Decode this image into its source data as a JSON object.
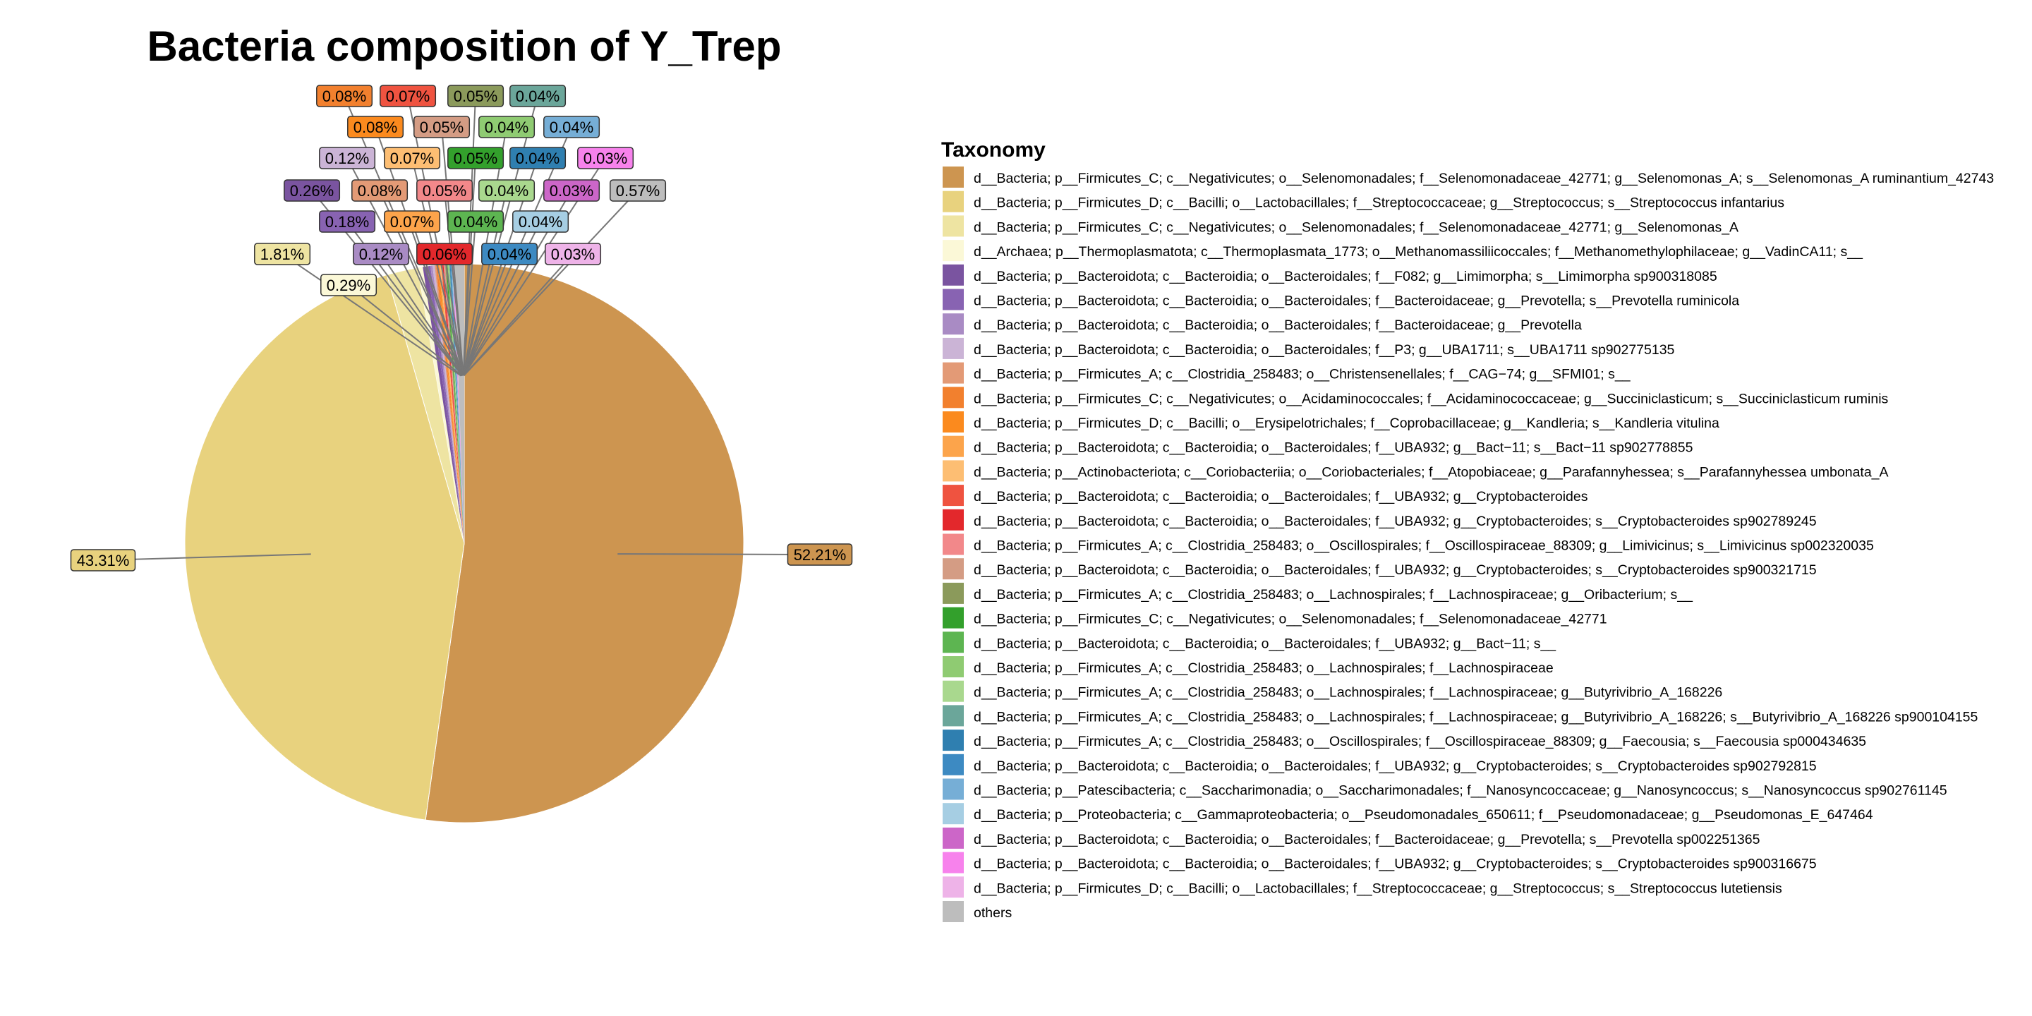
{
  "chart_data": {
    "type": "pie",
    "title": "Bacteria composition of Y_Trep",
    "legend_title": "Taxonomy",
    "legend_position": "right",
    "slices": [
      {
        "label": "d__Bacteria; p__Firmicutes_C; c__Negativicutes; o__Selenomonadales; f__Selenomonadaceae_42771; g__Selenomonas_A; s__Selenomonas_A ruminantium_42743",
        "value": 52.21,
        "pct_text": "52.21%",
        "color": "#CD9550"
      },
      {
        "label": "d__Bacteria; p__Firmicutes_D; c__Bacilli; o__Lactobacillales; f__Streptococcaceae; g__Streptococcus; s__Streptococcus infantarius",
        "value": 43.31,
        "pct_text": "43.31%",
        "color": "#E8D27E"
      },
      {
        "label": "d__Bacteria; p__Firmicutes_C; c__Negativicutes; o__Selenomonadales; f__Selenomonadaceae_42771; g__Selenomonas_A",
        "value": 1.81,
        "pct_text": "1.81%",
        "color": "#EEE4A2"
      },
      {
        "label": "d__Archaea; p__Thermoplasmatota; c__Thermoplasmata_1773; o__Methanomassiliicoccales; f__Methanomethylophilaceae; g__VadinCA11; s__",
        "value": 0.29,
        "pct_text": "0.29%",
        "color": "#FBF8D7"
      },
      {
        "label": "d__Bacteria; p__Bacteroidota; c__Bacteroidia; o__Bacteroidales; f__F082; g__Limimorpha; s__Limimorpha sp900318085",
        "value": 0.26,
        "pct_text": "0.26%",
        "color": "#7A54A0"
      },
      {
        "label": "d__Bacteria; p__Bacteroidota; c__Bacteroidia; o__Bacteroidales; f__Bacteroidaceae; g__Prevotella; s__Prevotella ruminicola",
        "value": 0.18,
        "pct_text": "0.18%",
        "color": "#8863B2"
      },
      {
        "label": "d__Bacteria; p__Bacteroidota; c__Bacteroidia; o__Bacteroidales; f__Bacteroidaceae; g__Prevotella",
        "value": 0.12,
        "pct_text": "0.12%",
        "color": "#A98BC4"
      },
      {
        "label": "d__Bacteria; p__Bacteroidota; c__Bacteroidia; o__Bacteroidales; f__P3; g__UBA1711; s__UBA1711 sp902775135",
        "value": 0.12,
        "pct_text": "0.12%",
        "color": "#CBB4D6"
      },
      {
        "label": "d__Bacteria; p__Firmicutes_A; c__Clostridia_258483; o__Christensenellales; f__CAG−74; g__SFMI01; s__",
        "value": 0.08,
        "pct_text": "0.08%",
        "color": "#E39A76"
      },
      {
        "label": "d__Bacteria; p__Firmicutes_C; c__Negativicutes; o__Acidaminococcales; f__Acidaminococcaceae; g__Succiniclasticum; s__Succiniclasticum ruminis",
        "value": 0.08,
        "pct_text": "0.08%",
        "color": "#F2802E"
      },
      {
        "label": "d__Bacteria; p__Firmicutes_D; c__Bacilli; o__Erysipelotrichales; f__Coprobacillaceae; g__Kandleria; s__Kandleria vitulina",
        "value": 0.08,
        "pct_text": "0.08%",
        "color": "#FB8A1E"
      },
      {
        "label": "d__Bacteria; p__Bacteroidota; c__Bacteroidia; o__Bacteroidales; f__UBA932; g__Bact−11; s__Bact−11 sp902778855",
        "value": 0.07,
        "pct_text": "0.07%",
        "color": "#FCA44B"
      },
      {
        "label": "d__Bacteria; p__Actinobacteriota; c__Coriobacteriia; o__Coriobacteriales; f__Atopobiaceae; g__Parafannyhessea; s__Parafannyhessea umbonata_A",
        "value": 0.07,
        "pct_text": "0.07%",
        "color": "#FDBE73"
      },
      {
        "label": "d__Bacteria; p__Bacteroidota; c__Bacteroidia; o__Bacteroidales; f__UBA932; g__Cryptobacteroides",
        "value": 0.07,
        "pct_text": "0.07%",
        "color": "#EF5340"
      },
      {
        "label": "d__Bacteria; p__Bacteroidota; c__Bacteroidia; o__Bacteroidales; f__UBA932; g__Cryptobacteroides; s__Cryptobacteroides sp902789245",
        "value": 0.06,
        "pct_text": "0.06%",
        "color": "#E3282C"
      },
      {
        "label": "d__Bacteria; p__Firmicutes_A; c__Clostridia_258483; o__Oscillospirales; f__Oscillospiraceae_88309; g__Limivicinus; s__Limivicinus sp002320035",
        "value": 0.05,
        "pct_text": "0.05%",
        "color": "#F2888A"
      },
      {
        "label": "d__Bacteria; p__Bacteroidota; c__Bacteroidia; o__Bacteroidales; f__UBA932; g__Cryptobacteroides; s__Cryptobacteroides sp900321715",
        "value": 0.05,
        "pct_text": "0.05%",
        "color": "#D49C84"
      },
      {
        "label": "d__Bacteria; p__Firmicutes_A; c__Clostridia_258483; o__Lachnospirales; f__Lachnospiraceae; g__Oribacterium; s__",
        "value": 0.05,
        "pct_text": "0.05%",
        "color": "#8B9A5B"
      },
      {
        "label": "d__Bacteria; p__Firmicutes_C; c__Negativicutes; o__Selenomonadales; f__Selenomonadaceae_42771",
        "value": 0.05,
        "pct_text": "0.05%",
        "color": "#33A02C"
      },
      {
        "label": "d__Bacteria; p__Bacteroidota; c__Bacteroidia; o__Bacteroidales; f__UBA932; g__Bact−11; s__",
        "value": 0.04,
        "pct_text": "0.04%",
        "color": "#5DB551"
      },
      {
        "label": "d__Bacteria; p__Firmicutes_A; c__Clostridia_258483; o__Lachnospirales; f__Lachnospiraceae",
        "value": 0.04,
        "pct_text": "0.04%",
        "color": "#8FCB72"
      },
      {
        "label": "d__Bacteria; p__Firmicutes_A; c__Clostridia_258483; o__Lachnospirales; f__Lachnospiraceae; g__Butyrivibrio_A_168226",
        "value": 0.04,
        "pct_text": "0.04%",
        "color": "#A9D88E"
      },
      {
        "label": "d__Bacteria; p__Firmicutes_A; c__Clostridia_258483; o__Lachnospirales; f__Lachnospiraceae; g__Butyrivibrio_A_168226; s__Butyrivibrio_A_168226 sp900104155",
        "value": 0.04,
        "pct_text": "0.04%",
        "color": "#6BA69A"
      },
      {
        "label": "d__Bacteria; p__Firmicutes_A; c__Clostridia_258483; o__Oscillospirales; f__Oscillospiraceae_88309; g__Faecousia; s__Faecousia sp000434635",
        "value": 0.04,
        "pct_text": "0.04%",
        "color": "#2F7FB0"
      },
      {
        "label": "d__Bacteria; p__Bacteroidota; c__Bacteroidia; o__Bacteroidales; f__UBA932; g__Cryptobacteroides; s__Cryptobacteroides sp902792815",
        "value": 0.04,
        "pct_text": "0.04%",
        "color": "#3D8AC2"
      },
      {
        "label": "d__Bacteria; p__Patescibacteria; c__Saccharimonadia; o__Saccharimonadales; f__Nanosyncoccaceae; g__Nanosyncoccus; s__Nanosyncoccus sp902761145",
        "value": 0.04,
        "pct_text": "0.04%",
        "color": "#76AED6"
      },
      {
        "label": "d__Bacteria; p__Proteobacteria; c__Gammaproteobacteria; o__Pseudomonadales_650611; f__Pseudomonadaceae; g__Pseudomonas_E_647464",
        "value": 0.04,
        "pct_text": "0.04%",
        "color": "#A6CEE3"
      },
      {
        "label": "d__Bacteria; p__Bacteroidota; c__Bacteroidia; o__Bacteroidales; f__Bacteroidaceae; g__Prevotella; s__Prevotella sp002251365",
        "value": 0.03,
        "pct_text": "0.03%",
        "color": "#CC66C8"
      },
      {
        "label": "d__Bacteria; p__Bacteroidota; c__Bacteroidia; o__Bacteroidales; f__UBA932; g__Cryptobacteroides; s__Cryptobacteroides sp900316675",
        "value": 0.03,
        "pct_text": "0.03%",
        "color": "#F782EC"
      },
      {
        "label": "d__Bacteria; p__Firmicutes_D; c__Bacilli; o__Lactobacillales; f__Streptococcaceae; g__Streptococcus; s__Streptococcus lutetiensis",
        "value": 0.03,
        "pct_text": "0.03%",
        "color": "#EEB3E8"
      },
      {
        "label": "others",
        "value": 0.57,
        "pct_text": "0.57%",
        "color": "#BDBDBD"
      }
    ]
  }
}
